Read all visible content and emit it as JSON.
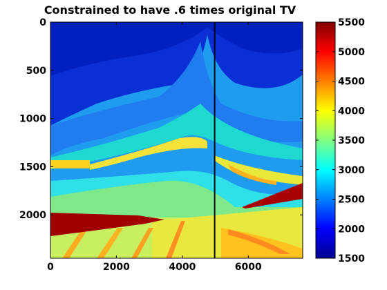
{
  "chart_data": {
    "type": "heatmap",
    "title": "Constrained to have .6 times original TV",
    "xlabel": "",
    "ylabel": "",
    "xlim": [
      0,
      7650
    ],
    "ylim": [
      2450,
      0
    ],
    "x_ticks": [
      0,
      2000,
      4000,
      6000
    ],
    "y_ticks": [
      0,
      500,
      1000,
      1500,
      2000
    ],
    "x_tick_labels": [
      "0",
      "2000",
      "4000",
      "6000"
    ],
    "y_tick_labels": [
      "0",
      "500",
      "1000",
      "1500",
      "2000"
    ],
    "colorbar": {
      "colormap": "jet",
      "range": [
        1500,
        5500
      ],
      "ticks": [
        1500,
        2000,
        2500,
        3000,
        3500,
        4000,
        4500,
        5000,
        5500
      ],
      "tick_labels": [
        "1500",
        "2000",
        "2500",
        "3000",
        "3500",
        "4000",
        "4500",
        "5000",
        "5500"
      ]
    },
    "annotations": [
      {
        "kind": "vertical-line",
        "x": 4980,
        "color": "#000000"
      }
    ]
  }
}
